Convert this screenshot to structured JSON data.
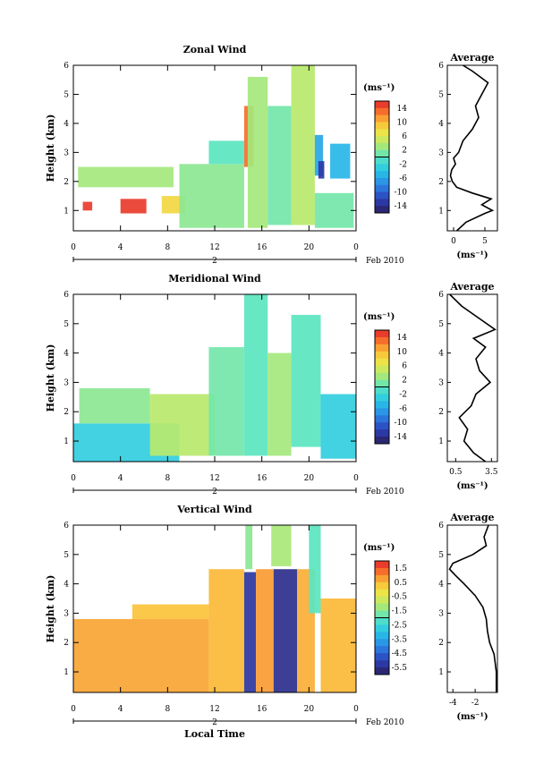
{
  "chart_data": [
    {
      "type": "heatmap",
      "title": "Zonal Wind",
      "ylabel": "Height (km)",
      "xlabel": "",
      "xlim": [
        0,
        24
      ],
      "ylim": [
        0.3,
        6
      ],
      "x_ticks": [
        "0",
        "4",
        "8",
        "12",
        "16",
        "20",
        "0"
      ],
      "y_ticks": [
        "1",
        "2",
        "3",
        "4",
        "5",
        "6"
      ],
      "date_marker": "2",
      "date_label": "Feb 2010",
      "colorbar": {
        "unit": "(ms⁻¹)",
        "min": -16,
        "max": 16,
        "ticks": [
          "14",
          "10",
          "6",
          "2",
          "-2",
          "-6",
          "-10",
          "-14"
        ]
      },
      "blocks": [
        {
          "x": [
            0.4,
            8.5
          ],
          "y": [
            1.8,
            2.5
          ],
          "v": 3
        },
        {
          "x": [
            0.8,
            1.6
          ],
          "y": [
            1.0,
            1.3
          ],
          "v": 15
        },
        {
          "x": [
            4.0,
            6.2
          ],
          "y": [
            0.9,
            1.4
          ],
          "v": 15
        },
        {
          "x": [
            7.5,
            9.5
          ],
          "y": [
            0.9,
            1.5
          ],
          "v": 8
        },
        {
          "x": [
            9.0,
            14.5
          ],
          "y": [
            0.4,
            2.6
          ],
          "v": 2
        },
        {
          "x": [
            11.5,
            14.5
          ],
          "y": [
            2.6,
            3.4
          ],
          "v": 0
        },
        {
          "x": [
            14.5,
            15.3
          ],
          "y": [
            2.5,
            4.6
          ],
          "v": 13
        },
        {
          "x": [
            14.8,
            16.5
          ],
          "y": [
            0.4,
            5.6
          ],
          "v": 3
        },
        {
          "x": [
            16.5,
            18.5
          ],
          "y": [
            0.5,
            4.6
          ],
          "v": 1
        },
        {
          "x": [
            18.5,
            20.5
          ],
          "y": [
            0.5,
            6.0
          ],
          "v": 4
        },
        {
          "x": [
            20.5,
            21.2
          ],
          "y": [
            2.2,
            3.6
          ],
          "v": -6
        },
        {
          "x": [
            20.8,
            21.3
          ],
          "y": [
            2.1,
            2.7
          ],
          "v": -13
        },
        {
          "x": [
            21.8,
            23.5
          ],
          "y": [
            2.1,
            3.3
          ],
          "v": -5
        },
        {
          "x": [
            20.5,
            23.8
          ],
          "y": [
            0.4,
            1.6
          ],
          "v": 1
        }
      ],
      "profile": {
        "title": "Average",
        "xlabel": "(ms⁻¹)",
        "xlim": [
          -1,
          7
        ],
        "x_ticks": [
          "0",
          "5"
        ],
        "y": [
          0.3,
          0.6,
          0.9,
          1.0,
          1.2,
          1.4,
          1.6,
          1.8,
          2.0,
          2.2,
          2.4,
          2.6,
          2.8,
          3.0,
          3.4,
          3.8,
          4.2,
          4.6,
          5.0,
          5.4,
          5.8,
          6.0
        ],
        "values": [
          0.5,
          2.0,
          5.0,
          6.2,
          4.5,
          6.0,
          3.0,
          0.5,
          -0.2,
          -0.5,
          -0.3,
          0.3,
          0.0,
          0.8,
          1.5,
          3.0,
          4.0,
          3.5,
          4.5,
          5.5,
          3.0,
          1.5
        ]
      }
    },
    {
      "type": "heatmap",
      "title": "Meridional Wind",
      "ylabel": "Height (km)",
      "xlabel": "",
      "xlim": [
        0,
        24
      ],
      "ylim": [
        0.3,
        6
      ],
      "x_ticks": [
        "0",
        "4",
        "8",
        "12",
        "16",
        "20",
        "0"
      ],
      "y_ticks": [
        "1",
        "2",
        "3",
        "4",
        "5",
        "6"
      ],
      "date_marker": "2",
      "date_label": "Feb 2010",
      "colorbar": {
        "unit": "(ms⁻¹)",
        "min": -16,
        "max": 16,
        "ticks": [
          "14",
          "10",
          "6",
          "2",
          "-2",
          "-6",
          "-10",
          "-14"
        ]
      },
      "blocks": [
        {
          "x": [
            0.0,
            9.0
          ],
          "y": [
            0.3,
            1.6
          ],
          "v": -3
        },
        {
          "x": [
            0.5,
            6.5
          ],
          "y": [
            1.6,
            2.8
          ],
          "v": 2
        },
        {
          "x": [
            6.5,
            12.0
          ],
          "y": [
            0.5,
            2.6
          ],
          "v": 4
        },
        {
          "x": [
            11.5,
            14.5
          ],
          "y": [
            0.5,
            4.2
          ],
          "v": 1
        },
        {
          "x": [
            14.5,
            16.5
          ],
          "y": [
            0.5,
            6.0
          ],
          "v": 0
        },
        {
          "x": [
            16.5,
            18.5
          ],
          "y": [
            0.5,
            4.0
          ],
          "v": 3
        },
        {
          "x": [
            18.5,
            21.0
          ],
          "y": [
            0.8,
            5.3
          ],
          "v": 0
        },
        {
          "x": [
            21.0,
            24.0
          ],
          "y": [
            0.4,
            2.6
          ],
          "v": -3
        }
      ],
      "profile": {
        "title": "Average",
        "xlabel": "(ms⁻¹)",
        "xlim": [
          -0.2,
          4.0
        ],
        "x_ticks": [
          "0.5",
          "3.5"
        ],
        "y": [
          0.3,
          0.6,
          1.0,
          1.4,
          1.8,
          2.2,
          2.6,
          3.0,
          3.4,
          3.8,
          4.2,
          4.5,
          4.8,
          5.2,
          5.6,
          6.0
        ],
        "values": [
          3.0,
          2.0,
          1.2,
          1.5,
          0.8,
          1.8,
          2.2,
          3.4,
          2.5,
          2.2,
          3.0,
          2.0,
          3.8,
          2.4,
          1.0,
          0.0
        ]
      }
    },
    {
      "type": "heatmap",
      "title": "Vertical Wind",
      "ylabel": "Height (km)",
      "xlabel": "Local Time",
      "xlim": [
        0,
        24
      ],
      "ylim": [
        0.3,
        6
      ],
      "x_ticks": [
        "0",
        "4",
        "8",
        "12",
        "16",
        "20",
        "0"
      ],
      "y_ticks": [
        "1",
        "2",
        "3",
        "4",
        "5",
        "6"
      ],
      "date_marker": "2",
      "date_label": "Feb 2010",
      "colorbar": {
        "unit": "(ms⁻¹)",
        "min": -6,
        "max": 2,
        "ticks": [
          "1.5",
          "0.5",
          "-0.5",
          "-1.5",
          "-2.5",
          "-3.5",
          "-4.5",
          "-5.5"
        ]
      },
      "blocks": [
        {
          "x": [
            0.0,
            11.5
          ],
          "y": [
            0.3,
            2.8
          ],
          "v": 0.7
        },
        {
          "x": [
            5.0,
            11.5
          ],
          "y": [
            2.8,
            3.3
          ],
          "v": 0.4
        },
        {
          "x": [
            11.5,
            14.5
          ],
          "y": [
            0.3,
            4.5
          ],
          "v": 0.5
        },
        {
          "x": [
            14.5,
            15.5
          ],
          "y": [
            0.3,
            4.4
          ],
          "v": -5.3
        },
        {
          "x": [
            14.6,
            15.2
          ],
          "y": [
            4.5,
            6.0
          ],
          "v": -1.5
        },
        {
          "x": [
            15.5,
            17.0
          ],
          "y": [
            0.3,
            4.5
          ],
          "v": 0.8
        },
        {
          "x": [
            16.8,
            18.5
          ],
          "y": [
            4.6,
            6.0
          ],
          "v": -1.2
        },
        {
          "x": [
            17.0,
            19.0
          ],
          "y": [
            0.3,
            4.5
          ],
          "v": -5.5
        },
        {
          "x": [
            19.0,
            20.5
          ],
          "y": [
            0.3,
            4.5
          ],
          "v": 0.6
        },
        {
          "x": [
            20.0,
            21.0
          ],
          "y": [
            3.0,
            6.0
          ],
          "v": -2.0
        },
        {
          "x": [
            21.0,
            24.0
          ],
          "y": [
            0.3,
            3.5
          ],
          "v": 0.5
        }
      ],
      "profile": {
        "title": "Average",
        "xlabel": "(ms⁻¹)",
        "xlim": [
          -4.5,
          0.0
        ],
        "x_ticks": [
          "-4",
          "-2"
        ],
        "y": [
          0.3,
          1.0,
          1.6,
          2.0,
          2.4,
          2.8,
          3.2,
          3.6,
          4.0,
          4.3,
          4.5,
          4.7,
          5.0,
          5.3,
          5.6,
          6.0
        ],
        "values": [
          -0.1,
          -0.1,
          -0.3,
          -0.7,
          -0.9,
          -1.0,
          -1.3,
          -2.0,
          -3.0,
          -3.8,
          -4.3,
          -4.0,
          -2.2,
          -1.0,
          -1.2,
          -0.8
        ]
      }
    }
  ]
}
